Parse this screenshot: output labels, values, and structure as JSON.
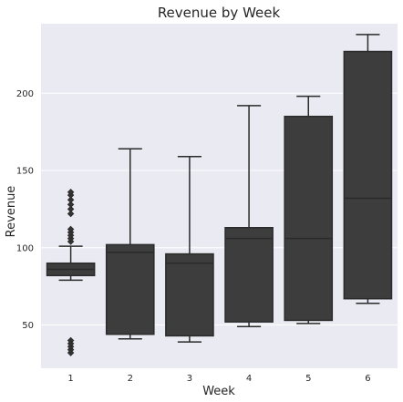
{
  "chart_data": {
    "type": "box",
    "title": "Revenue by Week",
    "xlabel": "Week",
    "ylabel": "Revenue",
    "categories": [
      "1",
      "2",
      "3",
      "4",
      "5",
      "6"
    ],
    "ylim": [
      22,
      245
    ],
    "yticks": [
      50,
      100,
      150,
      200
    ],
    "grid": true,
    "colors": {
      "background": "#eaeaf2",
      "grid": "#ffffff",
      "box": "#3d3d3d",
      "line": "#2b2b2b"
    },
    "boxes": [
      {
        "category": "1",
        "whisker_low": 79,
        "q1": 82,
        "median": 86,
        "q3": 90,
        "whisker_high": 101,
        "outliers": [
          32,
          34,
          36,
          38,
          40,
          104,
          106,
          108,
          110,
          112,
          122,
          125,
          128,
          131,
          134,
          136
        ]
      },
      {
        "category": "2",
        "whisker_low": 41,
        "q1": 44,
        "median": 97,
        "q3": 102,
        "whisker_high": 164,
        "outliers": []
      },
      {
        "category": "3",
        "whisker_low": 39,
        "q1": 43,
        "median": 90,
        "q3": 96,
        "whisker_high": 159,
        "outliers": []
      },
      {
        "category": "4",
        "whisker_low": 49,
        "q1": 52,
        "median": 106,
        "q3": 113,
        "whisker_high": 192,
        "outliers": []
      },
      {
        "category": "5",
        "whisker_low": 51,
        "q1": 53,
        "median": 106,
        "q3": 185,
        "whisker_high": 198,
        "outliers": []
      },
      {
        "category": "6",
        "whisker_low": 64,
        "q1": 67,
        "median": 132,
        "q3": 227,
        "whisker_high": 238,
        "outliers": []
      }
    ]
  }
}
